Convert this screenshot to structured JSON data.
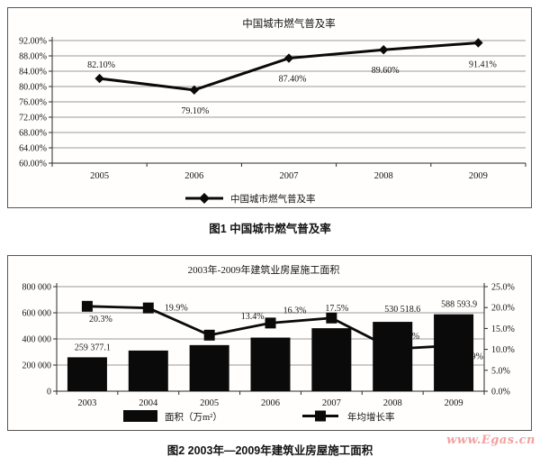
{
  "page": {
    "watermark": "www.Egas.cn"
  },
  "figure1": {
    "caption": "图1 中国城市燃气普及率"
  },
  "figure2": {
    "caption": "图2 2003年—2009年建筑业房屋施工面积"
  },
  "chart_data": [
    {
      "id": "chart1",
      "type": "line",
      "title": "中国城市燃气普及率",
      "categories": [
        "2005",
        "2006",
        "2007",
        "2008",
        "2009"
      ],
      "series": [
        {
          "name": "中国城市燃气普及率",
          "marker": "diamond",
          "color": "#0a0a0a",
          "values": [
            82.1,
            79.1,
            87.4,
            89.6,
            91.41
          ],
          "point_labels": [
            "82.10%",
            "79.10%",
            "87.40%",
            "89.60%",
            "91.41%"
          ]
        }
      ],
      "ylim": [
        60,
        92
      ],
      "ytick_labels": [
        "92.00%",
        "88.00%",
        "84.00%",
        "80.00%",
        "76.00%",
        "72.00%",
        "68.00%",
        "64.00%",
        "60.00%"
      ],
      "grid": true,
      "legend_position": "bottom"
    },
    {
      "id": "chart2",
      "type": "bar+line",
      "title": "2003年-2009年建筑业房屋施工面积",
      "categories": [
        "2003",
        "2004",
        "2005",
        "2006",
        "2007",
        "2008",
        "2009"
      ],
      "series": [
        {
          "name": "面积（万m²）",
          "type": "bar",
          "axis": "left",
          "color": "#0a0a0a",
          "values": [
            259377.1,
            310987.2,
            352745.1,
            410154.1,
            482005.6,
            530518.6,
            588593.9
          ],
          "point_labels": [
            "259 377.1",
            "",
            "",
            "",
            "",
            "530 518.6",
            "588 593.9"
          ]
        },
        {
          "name": "年均增长率",
          "type": "line",
          "axis": "right",
          "marker": "square",
          "color": "#0a0a0a",
          "values": [
            20.3,
            19.9,
            13.4,
            16.3,
            17.5,
            10.1,
            10.9
          ],
          "point_labels": [
            "20.3%",
            "19.9%",
            "13.4%",
            "16.3%",
            "17.5%",
            "10.1%",
            "10.9%"
          ],
          "labels_partially_hidden_behind_bars": [
            5,
            6
          ]
        }
      ],
      "left_ylim": [
        0,
        800000
      ],
      "left_ytick_labels": [
        "800 000",
        "600 000",
        "400 000",
        "200 000",
        "0"
      ],
      "right_ylim": [
        0,
        25
      ],
      "right_ytick_labels": [
        "25.0%",
        "20.0%",
        "15.0%",
        "10.0%",
        "5.0%",
        "0.0%"
      ],
      "grid": true,
      "legend_position": "bottom"
    }
  ]
}
